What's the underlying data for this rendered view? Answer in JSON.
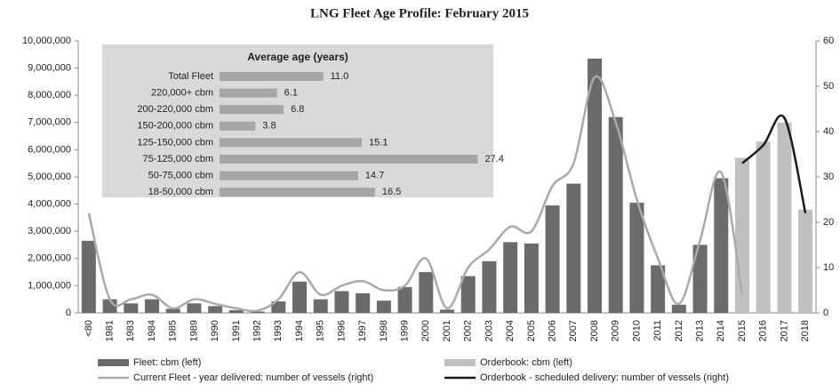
{
  "chart_data": {
    "type": "bar",
    "title": "LNG Fleet Age Profile: February 2015",
    "categories": [
      "<80",
      "1981",
      "1983",
      "1984",
      "1985",
      "1989",
      "1990",
      "1991",
      "1992",
      "1993",
      "1994",
      "1995",
      "1996",
      "1997",
      "1998",
      "1999",
      "2000",
      "2001",
      "2002",
      "2003",
      "2004",
      "2005",
      "2006",
      "2007",
      "2008",
      "2009",
      "2010",
      "2011",
      "2012",
      "2013",
      "2014",
      "2015",
      "2016",
      "2017",
      "2018"
    ],
    "series": [
      {
        "name": "Fleet: cbm (left)",
        "type": "bar",
        "color": "#6b6b6b",
        "values": [
          2650000,
          500000,
          350000,
          500000,
          150000,
          350000,
          250000,
          100000,
          50000,
          420000,
          1150000,
          500000,
          800000,
          720000,
          450000,
          950000,
          1500000,
          120000,
          1350000,
          1900000,
          2600000,
          2550000,
          3950000,
          4750000,
          9350000,
          7200000,
          4050000,
          1750000,
          300000,
          2500000,
          4950000,
          620000,
          null,
          null,
          null
        ]
      },
      {
        "name": "Orderbook: cbm (left)",
        "type": "bar",
        "color": "#c0c0c0",
        "values": [
          null,
          null,
          null,
          null,
          null,
          null,
          null,
          null,
          null,
          null,
          null,
          null,
          null,
          null,
          null,
          null,
          null,
          null,
          null,
          null,
          null,
          null,
          null,
          null,
          null,
          null,
          null,
          null,
          null,
          null,
          null,
          5700000,
          6300000,
          7000000,
          3800000
        ]
      },
      {
        "name": "Current Fleet - year delivered:  number of vessels (right)",
        "type": "line",
        "axis": "y2",
        "color": "#aaaaaa",
        "values": [
          22,
          3,
          3,
          4,
          1,
          3,
          2,
          1,
          0.5,
          3,
          9,
          4,
          6,
          7,
          5,
          6,
          12,
          1,
          10,
          14,
          19,
          18,
          28,
          33,
          52,
          42,
          25,
          12,
          2,
          16,
          31,
          4,
          null,
          null,
          null
        ]
      },
      {
        "name": "Orderbook - scheduled delivery:  number of vessels (right)",
        "type": "line",
        "axis": "y2",
        "color": "#1a1a1a",
        "values": [
          null,
          null,
          null,
          null,
          null,
          null,
          null,
          null,
          null,
          null,
          null,
          null,
          null,
          null,
          null,
          null,
          null,
          null,
          null,
          null,
          null,
          null,
          null,
          null,
          null,
          null,
          null,
          null,
          null,
          null,
          null,
          33,
          37,
          43,
          22
        ]
      }
    ],
    "ylim": [
      0,
      10000000
    ],
    "yticks": [
      0,
      {
        "value": 1000000,
        "label": "1,000,000"
      },
      {
        "value": 2000000,
        "label": "2,000,000"
      },
      {
        "value": 3000000,
        "label": "3,000,000"
      },
      {
        "value": 4000000,
        "label": "4,000,000"
      },
      {
        "value": 5000000,
        "label": "5,000,000"
      },
      {
        "value": 6000000,
        "label": "6,000,000"
      },
      {
        "value": 7000000,
        "label": "7,000,000"
      },
      {
        "value": 8000000,
        "label": "8,000,000"
      },
      {
        "value": 9000000,
        "label": "9,000,000"
      },
      {
        "value": 10000000,
        "label": "10,000,000"
      }
    ],
    "y2lim": [
      0,
      60
    ],
    "y2ticks": [
      0,
      10,
      20,
      30,
      40,
      50,
      60
    ],
    "inset": {
      "title": "Average age (years)",
      "color": "#a6a6a6",
      "categories": [
        "Total Fleet",
        "220,000+ cbm",
        "200-220,000 cbm",
        "150-200,000 cbm",
        "125-150,000 cbm",
        "75-125,000 cbm",
        "50-75,000 cbm",
        "18-50,000 cbm"
      ],
      "values": [
        11.0,
        6.1,
        6.8,
        3.8,
        15.1,
        27.4,
        14.7,
        16.5
      ],
      "value_labels": [
        "11.0",
        "6.1",
        "6.8",
        "3.8",
        "15.1",
        "27.4",
        "14.7",
        "16.5"
      ]
    }
  }
}
